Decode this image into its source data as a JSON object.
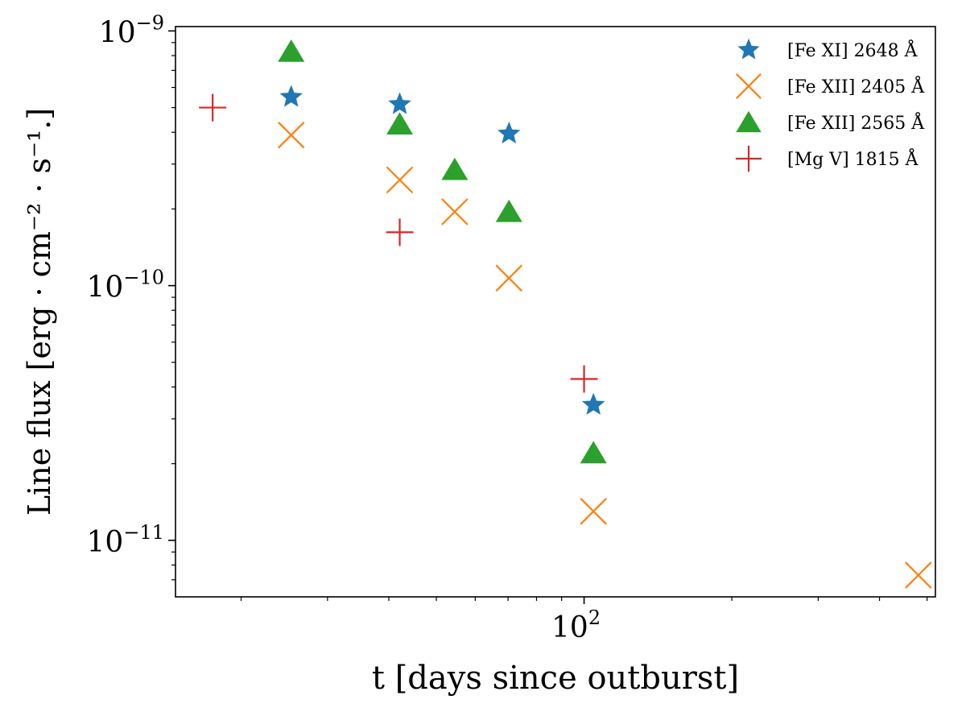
{
  "chart_data": {
    "type": "scatter",
    "xscale": "log",
    "yscale": "log",
    "xlim": [
      14.7,
      520
    ],
    "ylim": [
      6e-12,
      1.04e-09
    ],
    "xlabel": "t [days since outburst]",
    "ylabel": "Line flux [erg · cm⁻² · s⁻¹.]",
    "x_ticks": [
      {
        "value": 100,
        "base": "10",
        "exp": "2"
      }
    ],
    "y_ticks": [
      {
        "value": 1e-11,
        "base": "10",
        "exp": "−11"
      },
      {
        "value": 1e-10,
        "base": "10",
        "exp": "−10"
      },
      {
        "value": 1e-09,
        "base": "10",
        "exp": "−9"
      }
    ],
    "legend_position": "top-right",
    "series": [
      {
        "name": "[Fe XI] 2648 Å",
        "marker": "star",
        "color": "#1f77b4",
        "points": [
          [
            25.3,
            5.5e-10
          ],
          [
            42.1,
            5.15e-10
          ],
          [
            70.3,
            3.95e-10
          ],
          [
            104.5,
            3.4e-11
          ]
        ]
      },
      {
        "name": "[Fe XII] 2405 Å",
        "marker": "x",
        "color": "#ff7f0e",
        "points": [
          [
            25.3,
            3.9e-10
          ],
          [
            42.1,
            2.6e-10
          ],
          [
            54.5,
            1.95e-10
          ],
          [
            70.3,
            1.07e-10
          ],
          [
            104.5,
            1.3e-11
          ],
          [
            480,
            7.3e-12
          ]
        ]
      },
      {
        "name": "[Fe XII] 2565 Å",
        "marker": "triangle",
        "color": "#2ca02c",
        "points": [
          [
            25.3,
            8.3e-10
          ],
          [
            42.1,
            4.3e-10
          ],
          [
            54.5,
            2.85e-10
          ],
          [
            70.3,
            1.95e-10
          ],
          [
            104.5,
            2.2e-11
          ]
        ]
      },
      {
        "name": "[Mg V] 1815 Å",
        "marker": "plus",
        "color": "#d62728",
        "points": [
          [
            17.5,
            5e-10
          ],
          [
            42.1,
            1.62e-10
          ],
          [
            100,
            4.3e-11
          ]
        ]
      }
    ]
  }
}
